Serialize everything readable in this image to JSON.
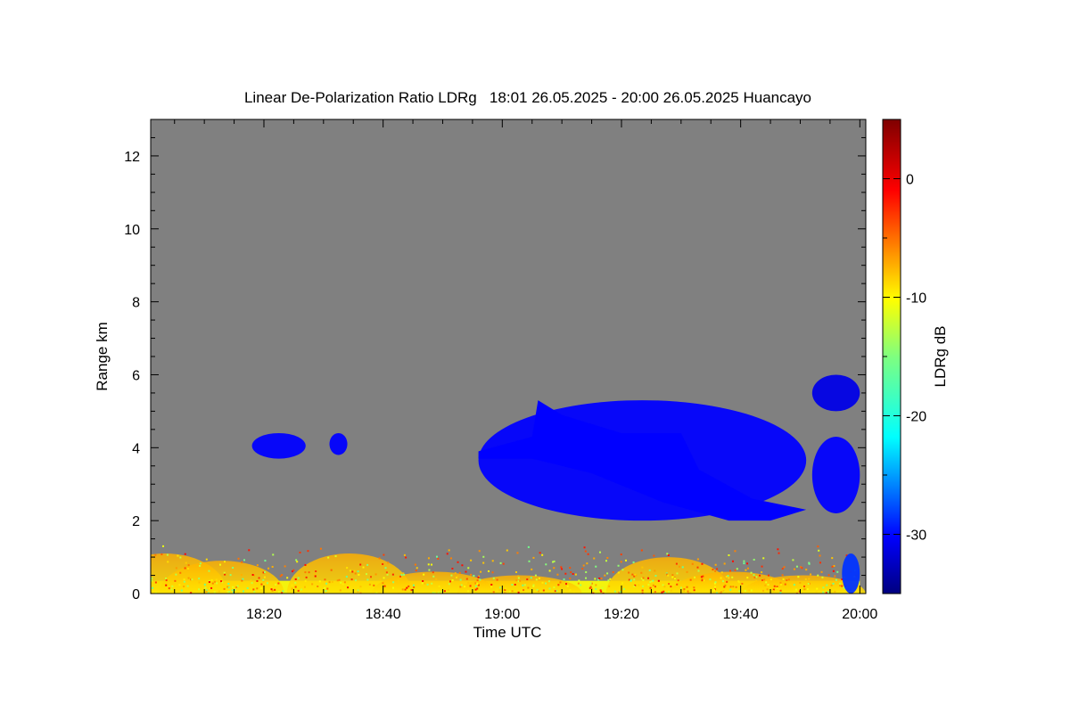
{
  "chart_data": {
    "type": "heatmap",
    "title": "Linear De-Polarization Ratio LDRg   18:01 26.05.2025 - 20:00 26.05.2025 Huancayo",
    "xlabel": "Time UTC",
    "ylabel": "Range km",
    "xlim": [
      "18:01",
      "20:01"
    ],
    "ylim": [
      0,
      13
    ],
    "x_ticks": [
      "18:20",
      "18:40",
      "19:00",
      "19:20",
      "19:40",
      "20:00"
    ],
    "y_ticks": [
      "0",
      "2",
      "4",
      "6",
      "8",
      "10",
      "12"
    ],
    "no_data_color": "#808080",
    "colorbar": {
      "label": "LDRg dB",
      "range": [
        -35,
        5
      ],
      "ticks": [
        "0",
        "-10",
        "-20",
        "-30"
      ],
      "colormap": "jet"
    },
    "regions": [
      {
        "name": "boundary-layer-echo",
        "time": [
          "18:01",
          "20:00"
        ],
        "range_km": [
          0,
          1.4
        ],
        "ldr_db": -10
      },
      {
        "name": "midlevel-cloud-1",
        "time": [
          "18:18",
          "18:27"
        ],
        "range_km": [
          3.7,
          4.4
        ],
        "ldr_db": -30
      },
      {
        "name": "midlevel-cloud-2",
        "time": [
          "18:31",
          "18:34"
        ],
        "range_km": [
          3.8,
          4.4
        ],
        "ldr_db": -30
      },
      {
        "name": "cloud-layer-main",
        "time": [
          "18:56",
          "19:51"
        ],
        "range_km": [
          2.0,
          5.3
        ],
        "ldr_db": -30
      },
      {
        "name": "cloud-layer-late-upper",
        "time": [
          "19:52",
          "20:00"
        ],
        "range_km": [
          5.0,
          6.0
        ],
        "ldr_db": -31
      },
      {
        "name": "cloud-layer-late-lower",
        "time": [
          "19:52",
          "20:00"
        ],
        "range_km": [
          2.2,
          4.3
        ],
        "ldr_db": -30
      },
      {
        "name": "precip-shaft",
        "time": [
          "19:57",
          "20:00"
        ],
        "range_km": [
          0,
          1.1
        ],
        "ldr_db": -28
      }
    ]
  }
}
